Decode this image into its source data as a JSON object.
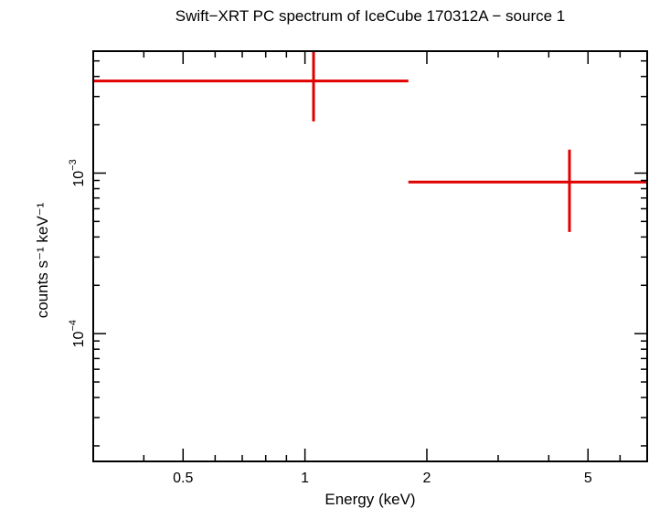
{
  "chart_data": {
    "type": "scatter",
    "title": "Swift−XRT PC spectrum of IceCube 170312A − source 1",
    "xlabel": "Energy (keV)",
    "ylabel": "counts s⁻¹ keV⁻¹",
    "xscale": "log",
    "yscale": "log",
    "xlim": [
      0.3,
      7.0
    ],
    "ylim": [
      1.6e-05,
      0.00575
    ],
    "x_ticklabels": [
      {
        "value": 0.5,
        "label": "0.5"
      },
      {
        "value": 1,
        "label": "1"
      },
      {
        "value": 2,
        "label": "2"
      },
      {
        "value": 5,
        "label": "5"
      }
    ],
    "y_ticklabels": [
      {
        "value": 0.001,
        "base": "10",
        "exp": "−3"
      },
      {
        "value": 0.0001,
        "base": "10",
        "exp": "−4"
      }
    ],
    "series": [
      {
        "name": "source 1",
        "color": "#e00000",
        "points": [
          {
            "x": 1.05,
            "xlo": 0.3,
            "xhi": 1.8,
            "y": 0.00375,
            "ylo": 0.0021,
            "yhi": 0.00575
          },
          {
            "x": 4.5,
            "xlo": 1.8,
            "xhi": 7.0,
            "y": 0.00088,
            "ylo": 0.00043,
            "yhi": 0.0014
          }
        ]
      }
    ]
  }
}
